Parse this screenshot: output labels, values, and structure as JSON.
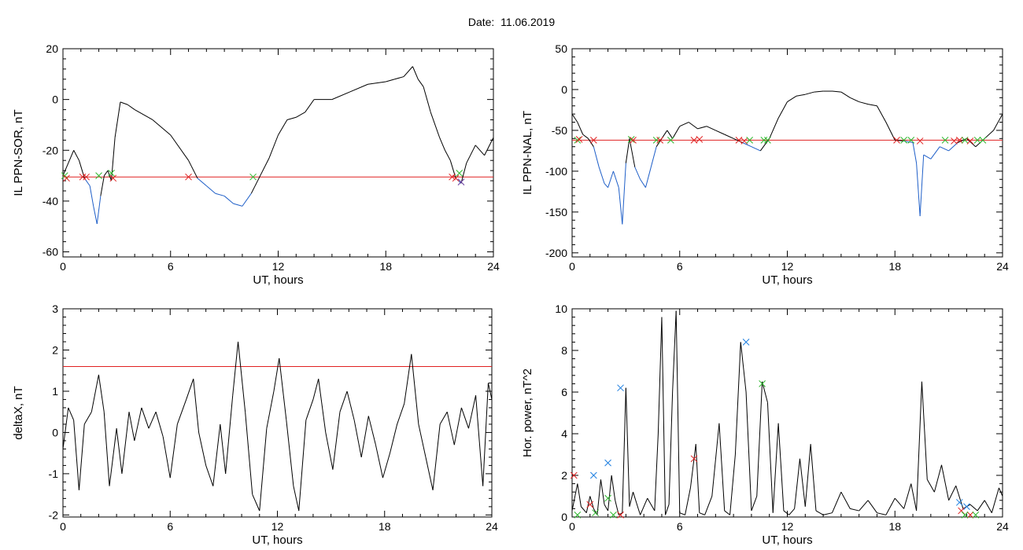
{
  "title": "Date:  11.06.2019",
  "colors": {
    "trace": "#000000",
    "below": "#1f5fc8",
    "threshold": "#e02020",
    "cross_red": "#e02020",
    "cross_green": "#2db82d",
    "cross_blue": "#1f7fe0",
    "cross_purple": "#6a3fa0"
  },
  "chart_data": [
    {
      "id": "sor",
      "type": "line",
      "title": "",
      "xlabel": "UT, hours",
      "ylabel": "IL PPN-SOR, nT",
      "xlim": [
        0,
        24
      ],
      "ylim": [
        -62,
        20
      ],
      "xticks": [
        "0",
        "6",
        "12",
        "18",
        "24"
      ],
      "xtick_values": [
        0,
        6,
        12,
        18,
        24
      ],
      "yticks": [
        "-60",
        "-40",
        "-20",
        "0",
        "20"
      ],
      "ytick_values": [
        -60,
        -40,
        -20,
        0,
        20
      ],
      "threshold": -30.5,
      "below_threshold_color": "blue",
      "series": [
        {
          "x": [
            0,
            0.3,
            0.6,
            0.9,
            1.2,
            1.5,
            1.7,
            1.9,
            2.1,
            2.3,
            2.5,
            2.7,
            2.9,
            3.2,
            3.6,
            4,
            5,
            6,
            7,
            7.5,
            8,
            8.5,
            9,
            9.5,
            10,
            10.5,
            11,
            11.5,
            12,
            12.5,
            13,
            13.5,
            14,
            15,
            16,
            17,
            18,
            18.5,
            19,
            19.5,
            19.8,
            20.1,
            20.5,
            21,
            21.3,
            21.6,
            21.9,
            22.2,
            22.5,
            23,
            23.5,
            24
          ],
          "y": [
            -30,
            -25,
            -20,
            -24,
            -31,
            -34,
            -42,
            -49,
            -38,
            -30,
            -28,
            -32,
            -15,
            -1,
            -2,
            -4,
            -8,
            -14,
            -24,
            -31,
            -34,
            -37,
            -38,
            -41,
            -42,
            -37,
            -30,
            -23,
            -14,
            -8,
            -7,
            -5,
            0,
            0,
            3,
            6,
            7,
            8,
            9,
            13,
            8,
            5,
            -5,
            -15,
            -20,
            -24,
            -31,
            -33,
            -25,
            -18,
            -22,
            -15
          ]
        }
      ],
      "crosses": [
        {
          "x": 0.1,
          "y": -30,
          "color": "green"
        },
        {
          "x": 0.2,
          "y": -31,
          "color": "red"
        },
        {
          "x": 1.1,
          "y": -30.5,
          "color": "red"
        },
        {
          "x": 1.3,
          "y": -30.5,
          "color": "red"
        },
        {
          "x": 2.0,
          "y": -30,
          "color": "green"
        },
        {
          "x": 2.7,
          "y": -29,
          "color": "green"
        },
        {
          "x": 2.8,
          "y": -31,
          "color": "red"
        },
        {
          "x": 7.0,
          "y": -30.5,
          "color": "red"
        },
        {
          "x": 10.6,
          "y": -30.5,
          "color": "green"
        },
        {
          "x": 21.7,
          "y": -30.5,
          "color": "red"
        },
        {
          "x": 21.9,
          "y": -31,
          "color": "red"
        },
        {
          "x": 22.1,
          "y": -29,
          "color": "green"
        },
        {
          "x": 22.2,
          "y": -32.5,
          "color": "purple"
        }
      ]
    },
    {
      "id": "nal",
      "type": "line",
      "title": "",
      "xlabel": "UT, hours",
      "ylabel": "IL PPN-NAL, nT",
      "xlim": [
        0,
        24
      ],
      "ylim": [
        -205,
        50
      ],
      "xticks": [
        "0",
        "6",
        "12",
        "18",
        "24"
      ],
      "xtick_values": [
        0,
        6,
        12,
        18,
        24
      ],
      "yticks": [
        "-200",
        "-150",
        "-100",
        "-50",
        "0",
        "50"
      ],
      "ytick_values": [
        -200,
        -150,
        -100,
        -50,
        0,
        50
      ],
      "threshold": -62,
      "below_threshold_color": "blue",
      "series": [
        {
          "x": [
            0,
            0.3,
            0.6,
            0.9,
            1.2,
            1.5,
            1.8,
            2.0,
            2.3,
            2.6,
            2.8,
            3.0,
            3.2,
            3.5,
            3.8,
            4.1,
            4.4,
            4.7,
            5.0,
            5.3,
            5.6,
            6,
            6.5,
            7,
            7.5,
            8,
            8.5,
            9,
            9.5,
            10,
            10.5,
            11,
            11.5,
            12,
            12.5,
            13,
            13.5,
            14,
            14.5,
            15,
            15.5,
            16,
            16.5,
            17,
            17.5,
            18,
            18.5,
            19,
            19.2,
            19.4,
            19.6,
            20,
            20.5,
            21,
            21.5,
            22,
            22.5,
            23,
            23.5,
            24
          ],
          "y": [
            -30,
            -40,
            -55,
            -60,
            -70,
            -95,
            -115,
            -120,
            -100,
            -120,
            -165,
            -90,
            -60,
            -95,
            -110,
            -120,
            -95,
            -70,
            -60,
            -50,
            -60,
            -45,
            -40,
            -48,
            -45,
            -50,
            -55,
            -60,
            -65,
            -70,
            -75,
            -60,
            -35,
            -15,
            -8,
            -6,
            -3,
            -2,
            -2,
            -3,
            -10,
            -15,
            -18,
            -20,
            -40,
            -62,
            -63,
            -65,
            -90,
            -155,
            -80,
            -85,
            -70,
            -75,
            -65,
            -60,
            -70,
            -60,
            -50,
            -30
          ]
        }
      ],
      "crosses": [
        {
          "x": 0.3,
          "y": -62,
          "color": "green"
        },
        {
          "x": 0.4,
          "y": -61,
          "color": "red"
        },
        {
          "x": 1.2,
          "y": -62,
          "color": "red"
        },
        {
          "x": 3.3,
          "y": -61,
          "color": "green"
        },
        {
          "x": 3.4,
          "y": -62,
          "color": "red"
        },
        {
          "x": 4.7,
          "y": -62,
          "color": "green"
        },
        {
          "x": 4.9,
          "y": -62,
          "color": "red"
        },
        {
          "x": 5.5,
          "y": -62,
          "color": "green"
        },
        {
          "x": 6.8,
          "y": -62,
          "color": "red"
        },
        {
          "x": 7.1,
          "y": -61,
          "color": "red"
        },
        {
          "x": 9.3,
          "y": -62,
          "color": "red"
        },
        {
          "x": 9.6,
          "y": -63,
          "color": "red"
        },
        {
          "x": 9.9,
          "y": -62,
          "color": "green"
        },
        {
          "x": 10.7,
          "y": -62,
          "color": "green"
        },
        {
          "x": 10.9,
          "y": -62,
          "color": "green"
        },
        {
          "x": 18.1,
          "y": -62,
          "color": "red"
        },
        {
          "x": 18.5,
          "y": -62,
          "color": "green"
        },
        {
          "x": 18.9,
          "y": -62,
          "color": "green"
        },
        {
          "x": 19.4,
          "y": -63,
          "color": "red"
        },
        {
          "x": 20.8,
          "y": -62,
          "color": "green"
        },
        {
          "x": 21.3,
          "y": -63,
          "color": "red"
        },
        {
          "x": 21.6,
          "y": -62,
          "color": "red"
        },
        {
          "x": 21.9,
          "y": -62,
          "color": "green"
        },
        {
          "x": 22.2,
          "y": -63,
          "color": "red"
        },
        {
          "x": 22.6,
          "y": -62,
          "color": "green"
        },
        {
          "x": 22.9,
          "y": -62,
          "color": "green"
        }
      ]
    },
    {
      "id": "deltax",
      "type": "line",
      "title": "",
      "xlabel": "UT, hours",
      "ylabel": "deltaX, nT",
      "xlim": [
        0,
        24
      ],
      "ylim": [
        -2.05,
        3
      ],
      "xticks": [
        "0",
        "6",
        "12",
        "18",
        "24"
      ],
      "xtick_values": [
        0,
        6,
        12,
        18,
        24
      ],
      "yticks": [
        "-2",
        "-1",
        "0",
        "1",
        "2",
        "3"
      ],
      "ytick_values": [
        -2,
        -1,
        0,
        1,
        2,
        3
      ],
      "threshold": 1.6,
      "below_threshold_color": "black",
      "series": [
        {
          "x": [
            0,
            0.3,
            0.6,
            0.9,
            1.2,
            1.6,
            2.0,
            2.3,
            2.6,
            3.0,
            3.3,
            3.7,
            4.0,
            4.4,
            4.8,
            5.2,
            5.6,
            6.0,
            6.4,
            6.9,
            7.3,
            7.6,
            8.0,
            8.4,
            8.8,
            9.1,
            9.5,
            9.8,
            10.2,
            10.6,
            11.0,
            11.4,
            11.8,
            12.1,
            12.5,
            12.9,
            13.2,
            13.6,
            14.0,
            14.3,
            14.7,
            15.1,
            15.5,
            15.9,
            16.3,
            16.7,
            17.1,
            17.5,
            17.9,
            18.3,
            18.7,
            19.1,
            19.5,
            19.9,
            20.3,
            20.7,
            21.1,
            21.5,
            21.9,
            22.3,
            22.7,
            23.1,
            23.5,
            23.8,
            24
          ],
          "y": [
            -0.4,
            0.6,
            0.3,
            -1.4,
            0.2,
            0.5,
            1.4,
            0.5,
            -1.3,
            0.1,
            -1.0,
            0.5,
            -0.2,
            0.6,
            0.1,
            0.5,
            -0.1,
            -1.1,
            0.2,
            0.8,
            1.3,
            0.0,
            -0.8,
            -1.3,
            0.2,
            -1.0,
            0.9,
            2.2,
            0.5,
            -1.5,
            -1.9,
            0.1,
            1.0,
            1.8,
            0.3,
            -1.3,
            -1.9,
            0.3,
            0.8,
            1.3,
            0.0,
            -0.9,
            0.5,
            1.0,
            0.3,
            -0.6,
            0.4,
            -0.3,
            -1.1,
            -0.5,
            0.2,
            0.7,
            1.9,
            0.2,
            -0.6,
            -1.4,
            0.2,
            0.5,
            -0.3,
            0.6,
            0.1,
            0.9,
            -1.3,
            1.2,
            0.8
          ]
        }
      ],
      "crosses": []
    },
    {
      "id": "power",
      "type": "line",
      "title": "",
      "xlabel": "UT, hours",
      "ylabel": "Hor. power, nT^2",
      "xlim": [
        0,
        24
      ],
      "ylim": [
        0,
        10
      ],
      "xticks": [
        "0",
        "6",
        "12",
        "18",
        "24"
      ],
      "xtick_values": [
        0,
        6,
        12,
        18,
        24
      ],
      "yticks": [
        "0",
        "2",
        "4",
        "6",
        "8",
        "10"
      ],
      "ytick_values": [
        0,
        2,
        4,
        6,
        8,
        10
      ],
      "threshold": null,
      "below_threshold_color": "black",
      "series": [
        {
          "x": [
            0,
            0.3,
            0.5,
            0.8,
            1.0,
            1.2,
            1.4,
            1.6,
            1.8,
            2.0,
            2.2,
            2.4,
            2.6,
            2.8,
            3.0,
            3.2,
            3.4,
            3.8,
            4.2,
            4.6,
            4.8,
            5.0,
            5.2,
            5.4,
            5.6,
            5.8,
            6.0,
            6.3,
            6.6,
            6.9,
            7.1,
            7.4,
            7.8,
            8.2,
            8.5,
            8.8,
            9.1,
            9.4,
            9.7,
            10.0,
            10.3,
            10.6,
            10.9,
            11.2,
            11.5,
            11.8,
            12.1,
            12.4,
            12.7,
            13.0,
            13.3,
            13.6,
            14.0,
            14.5,
            15,
            15.5,
            16,
            16.5,
            17,
            17.5,
            18,
            18.5,
            18.9,
            19.2,
            19.5,
            19.8,
            20.2,
            20.6,
            21,
            21.4,
            21.8,
            22.2,
            22.6,
            23,
            23.4,
            23.8,
            24
          ],
          "y": [
            0.3,
            1.6,
            0.5,
            0.2,
            1.0,
            0.4,
            0.1,
            1.8,
            0.6,
            0.3,
            2.0,
            0.8,
            0.1,
            0.2,
            6.2,
            0.5,
            1.2,
            0.1,
            0.9,
            0.3,
            4.0,
            9.6,
            0.1,
            0.6,
            6.0,
            9.9,
            0.2,
            0.1,
            1.4,
            3.5,
            0.2,
            0.1,
            1.0,
            4.5,
            0.3,
            0.1,
            3.0,
            8.4,
            6.0,
            0.3,
            1.0,
            6.5,
            5.5,
            0.2,
            4.5,
            0.3,
            0.1,
            0.4,
            2.8,
            0.5,
            3.5,
            0.3,
            0.1,
            0.2,
            1.2,
            0.4,
            0.3,
            0.8,
            0.2,
            0.1,
            0.9,
            0.4,
            1.6,
            0.3,
            6.5,
            1.8,
            1.2,
            2.5,
            0.8,
            1.5,
            0.4,
            0.6,
            0.3,
            0.8,
            0.2,
            1.4,
            1.0
          ]
        }
      ],
      "crosses": [
        {
          "x": 1.2,
          "y": 2.0,
          "color": "blue"
        },
        {
          "x": 2.0,
          "y": 2.6,
          "color": "blue"
        },
        {
          "x": 2.7,
          "y": 6.2,
          "color": "blue"
        },
        {
          "x": 9.7,
          "y": 8.4,
          "color": "blue"
        },
        {
          "x": 21.6,
          "y": 0.7,
          "color": "blue"
        },
        {
          "x": 22.0,
          "y": 0.5,
          "color": "blue"
        },
        {
          "x": 0.1,
          "y": 2.0,
          "color": "red"
        },
        {
          "x": 1.0,
          "y": 0.6,
          "color": "red"
        },
        {
          "x": 2.7,
          "y": 0.1,
          "color": "red"
        },
        {
          "x": 6.8,
          "y": 2.8,
          "color": "red"
        },
        {
          "x": 21.7,
          "y": 0.3,
          "color": "red"
        },
        {
          "x": 22.2,
          "y": 0.1,
          "color": "red"
        },
        {
          "x": 0.3,
          "y": 0.1,
          "color": "green"
        },
        {
          "x": 1.3,
          "y": 0.2,
          "color": "green"
        },
        {
          "x": 2.0,
          "y": 0.9,
          "color": "green"
        },
        {
          "x": 2.3,
          "y": 0.1,
          "color": "green"
        },
        {
          "x": 10.6,
          "y": 6.4,
          "color": "green"
        },
        {
          "x": 21.9,
          "y": 0.1,
          "color": "green"
        },
        {
          "x": 22.5,
          "y": 0.1,
          "color": "green"
        }
      ]
    }
  ]
}
